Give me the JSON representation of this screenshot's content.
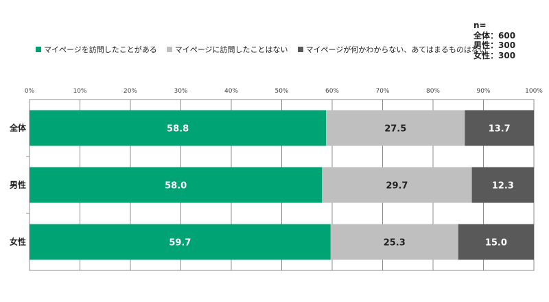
{
  "sample_note": {
    "header": "n=",
    "lines": [
      "全体：600",
      "男性：300",
      "女性：300"
    ]
  },
  "chart_data": {
    "type": "bar",
    "orientation": "horizontal",
    "stacked": true,
    "percent_stacked": true,
    "categories": [
      "全体",
      "男性",
      "女性"
    ],
    "series": [
      {
        "name": "マイページを訪問したことがある",
        "values": [
          58.8,
          58.0,
          59.7
        ],
        "color": "#00A374"
      },
      {
        "name": "マイページに訪問したことはない",
        "values": [
          27.5,
          29.7,
          25.3
        ],
        "color": "#BFBFBF"
      },
      {
        "name": "マイページが何かわからない、あてはまるものはない",
        "values": [
          13.7,
          12.3,
          15.0
        ],
        "color": "#595959"
      }
    ],
    "x_ticks": [
      "0%",
      "10%",
      "20%",
      "30%",
      "40%",
      "50%",
      "60%",
      "70%",
      "80%",
      "90%",
      "100%"
    ],
    "xlim": [
      0,
      100
    ],
    "grid": true,
    "legend_position": "top",
    "data_label_colors": [
      "#ffffff",
      "#222222",
      "#ffffff"
    ]
  }
}
